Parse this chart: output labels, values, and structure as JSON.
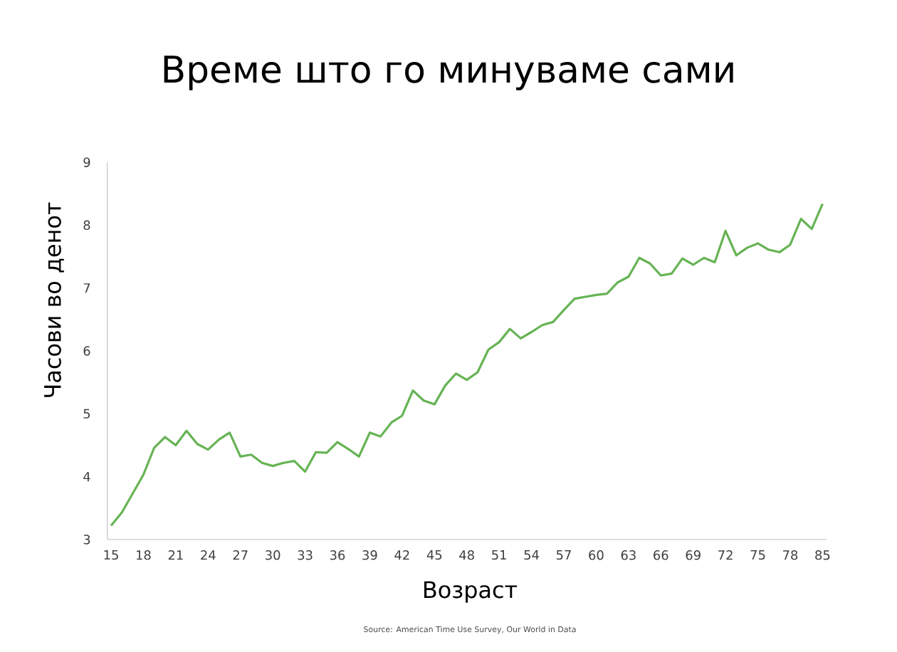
{
  "chart_data": {
    "type": "line",
    "title": "Време што го минуваме сами",
    "xlabel": "Возраст",
    "ylabel": "Часови во денот",
    "annotations": [
      "Source: American Time Use Survey, Our World in Data"
    ],
    "categories": [
      "15",
      null,
      null,
      "18",
      null,
      null,
      "21",
      null,
      null,
      "24",
      null,
      null,
      "27",
      null,
      null,
      "30",
      null,
      null,
      "33",
      null,
      null,
      "36",
      null,
      null,
      "39",
      null,
      null,
      "42",
      null,
      null,
      "45",
      null,
      null,
      "48",
      null,
      null,
      "51",
      null,
      null,
      "54",
      null,
      null,
      "57",
      null,
      null,
      "60",
      null,
      null,
      "63",
      null,
      null,
      "66",
      null,
      null,
      "69",
      null,
      null,
      "72",
      null,
      null,
      "75",
      null,
      null,
      "78",
      null,
      null,
      "85"
    ],
    "series": [
      {
        "color": "#66b354",
        "values": [
          3.22,
          3.43,
          3.73,
          4.03,
          4.46,
          4.63,
          4.5,
          4.73,
          4.52,
          4.43,
          4.59,
          4.7,
          4.32,
          4.35,
          4.22,
          4.17,
          4.22,
          4.25,
          4.08,
          4.39,
          4.38,
          4.55,
          4.44,
          4.32,
          4.7,
          4.64,
          4.86,
          4.97,
          5.37,
          5.21,
          5.15,
          5.45,
          5.64,
          5.54,
          5.66,
          6.02,
          6.14,
          6.35,
          6.2,
          6.3,
          6.41,
          6.46,
          6.65,
          6.83,
          6.86,
          6.89,
          6.91,
          7.09,
          7.18,
          7.48,
          7.39,
          7.2,
          7.23,
          7.47,
          7.37,
          7.48,
          7.41,
          7.91,
          7.52,
          7.64,
          7.71,
          7.61,
          7.57,
          7.69,
          8.1,
          7.94,
          8.34
        ]
      }
    ],
    "ylim": [
      3,
      9
    ],
    "yticks": [
      3,
      4,
      5,
      6,
      7,
      8,
      9
    ]
  }
}
